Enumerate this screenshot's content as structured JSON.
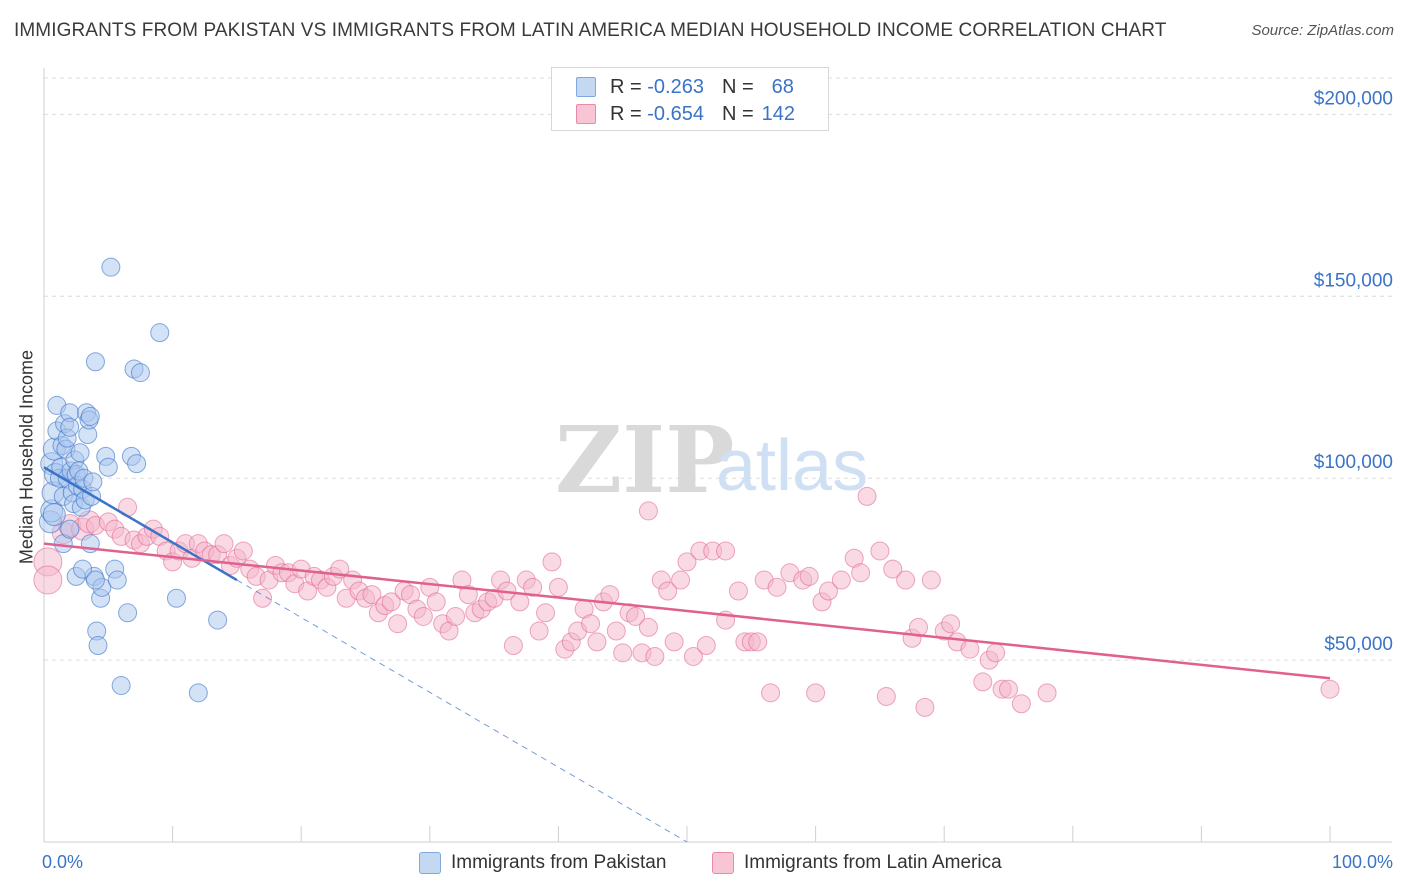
{
  "title": "IMMIGRANTS FROM PAKISTAN VS IMMIGRANTS FROM LATIN AMERICA MEDIAN HOUSEHOLD INCOME CORRELATION CHART",
  "source": "Source: ZipAtlas.com",
  "watermark": {
    "zip": "ZIP",
    "atlas": "atlas"
  },
  "legend": {
    "rows": [
      {
        "r_label": "R =",
        "r_value": "-0.263",
        "n_label": "N =",
        "n_value": "68",
        "color": "#7fa8e0",
        "fill": "#c5d8f2"
      },
      {
        "r_label": "R =",
        "r_value": "-0.654",
        "n_label": "N =",
        "n_value": "142",
        "color": "#e88aa8",
        "fill": "#f7c5d4"
      }
    ]
  },
  "colors": {
    "blue": "#3a73c8",
    "blue_fill": "#a9c6ee",
    "pink": "#e0608e",
    "pink_fill": "#f4b6c9",
    "grid": "#dcdcdc",
    "axis_text": "#3a73c8"
  },
  "chart_data": {
    "type": "scatter",
    "title": "IMMIGRANTS FROM PAKISTAN VS IMMIGRANTS FROM LATIN AMERICA MEDIAN HOUSEHOLD INCOME CORRELATION CHART",
    "xlabel": "",
    "ylabel": "Median Household Income",
    "xlim": [
      0,
      100
    ],
    "ylim": [
      0,
      210000
    ],
    "x_tick_labels": [
      "0.0%",
      "100.0%"
    ],
    "y_ticks": [
      50000,
      100000,
      150000,
      200000
    ],
    "y_tick_labels": [
      "$50,000",
      "$100,000",
      "$150,000",
      "$200,000"
    ],
    "grid": true,
    "legend_position": "top-center",
    "series": [
      {
        "name": "Immigrants from Pakistan",
        "trend": {
          "x_start": 0,
          "y_start": 103000,
          "x_end": 15,
          "y_end": 72000,
          "dashed_to_x": 50,
          "dashed_to_y": 0
        },
        "points": [
          [
            0.5,
            88000
          ],
          [
            0.6,
            91000
          ],
          [
            0.6,
            104000
          ],
          [
            0.7,
            96000
          ],
          [
            0.8,
            108000
          ],
          [
            0.9,
            101000
          ],
          [
            1.0,
            120000
          ],
          [
            1.0,
            113000
          ],
          [
            1.2,
            100000
          ],
          [
            1.3,
            103000
          ],
          [
            1.4,
            109000
          ],
          [
            1.5,
            95000
          ],
          [
            1.6,
            115000
          ],
          [
            1.7,
            108000
          ],
          [
            1.8,
            100000
          ],
          [
            1.8,
            111000
          ],
          [
            2.0,
            118000
          ],
          [
            2.0,
            114000
          ],
          [
            2.1,
            102000
          ],
          [
            2.2,
            96000
          ],
          [
            2.3,
            93000
          ],
          [
            2.4,
            105000
          ],
          [
            2.5,
            101000
          ],
          [
            2.6,
            98000
          ],
          [
            2.7,
            102000
          ],
          [
            2.8,
            107000
          ],
          [
            2.9,
            92000
          ],
          [
            3.0,
            97000
          ],
          [
            3.1,
            100000
          ],
          [
            3.2,
            94000
          ],
          [
            3.3,
            118000
          ],
          [
            3.4,
            112000
          ],
          [
            3.5,
            116000
          ],
          [
            3.6,
            117000
          ],
          [
            3.7,
            95000
          ],
          [
            3.8,
            99000
          ],
          [
            3.9,
            73000
          ],
          [
            4.0,
            132000
          ],
          [
            4.1,
            58000
          ],
          [
            4.2,
            54000
          ],
          [
            4.4,
            67000
          ],
          [
            4.5,
            70000
          ],
          [
            4.8,
            106000
          ],
          [
            5.0,
            103000
          ],
          [
            5.2,
            158000
          ],
          [
            5.5,
            75000
          ],
          [
            5.7,
            72000
          ],
          [
            6.0,
            43000
          ],
          [
            6.5,
            63000
          ],
          [
            6.8,
            106000
          ],
          [
            7.0,
            130000
          ],
          [
            7.2,
            104000
          ],
          [
            7.5,
            129000
          ],
          [
            9.0,
            140000
          ],
          [
            10.3,
            67000
          ],
          [
            12.0,
            41000
          ],
          [
            13.5,
            61000
          ],
          [
            2.5,
            73000
          ],
          [
            3.0,
            75000
          ],
          [
            4.0,
            72000
          ],
          [
            1.5,
            82000
          ],
          [
            2.0,
            86000
          ],
          [
            0.8,
            90000
          ],
          [
            3.6,
            82000
          ]
        ]
      },
      {
        "name": "Immigrants from Latin America",
        "trend": {
          "x_start": 0,
          "y_start": 82000,
          "x_end": 100,
          "y_end": 45000
        },
        "points": [
          [
            0.3,
            77000
          ],
          [
            0.3,
            72000
          ],
          [
            1.5,
            85000
          ],
          [
            2.0,
            87000
          ],
          [
            3.0,
            86000
          ],
          [
            3.5,
            88000
          ],
          [
            4.0,
            87000
          ],
          [
            5.0,
            88000
          ],
          [
            5.5,
            86000
          ],
          [
            6.0,
            84000
          ],
          [
            6.5,
            92000
          ],
          [
            7.0,
            83000
          ],
          [
            7.5,
            82000
          ],
          [
            8.0,
            84000
          ],
          [
            8.5,
            86000
          ],
          [
            9.0,
            84000
          ],
          [
            9.5,
            80000
          ],
          [
            10.0,
            77000
          ],
          [
            10.5,
            80000
          ],
          [
            11.0,
            82000
          ],
          [
            11.5,
            78000
          ],
          [
            12.0,
            82000
          ],
          [
            12.5,
            80000
          ],
          [
            13.0,
            79000
          ],
          [
            13.5,
            79000
          ],
          [
            14.0,
            82000
          ],
          [
            14.5,
            76000
          ],
          [
            15.0,
            78000
          ],
          [
            15.5,
            80000
          ],
          [
            16.0,
            75000
          ],
          [
            16.5,
            73000
          ],
          [
            17.0,
            67000
          ],
          [
            17.5,
            72000
          ],
          [
            18.0,
            76000
          ],
          [
            18.5,
            74000
          ],
          [
            19.0,
            74000
          ],
          [
            19.5,
            71000
          ],
          [
            20.0,
            75000
          ],
          [
            20.5,
            69000
          ],
          [
            21.0,
            73000
          ],
          [
            21.5,
            72000
          ],
          [
            22.0,
            70000
          ],
          [
            22.5,
            73000
          ],
          [
            23.0,
            75000
          ],
          [
            23.5,
            67000
          ],
          [
            24.0,
            72000
          ],
          [
            24.5,
            69000
          ],
          [
            25.0,
            67000
          ],
          [
            25.5,
            68000
          ],
          [
            26.0,
            63000
          ],
          [
            26.5,
            65000
          ],
          [
            27.0,
            66000
          ],
          [
            27.5,
            60000
          ],
          [
            28.0,
            69000
          ],
          [
            28.5,
            68000
          ],
          [
            29.0,
            64000
          ],
          [
            29.5,
            62000
          ],
          [
            30.0,
            70000
          ],
          [
            30.5,
            66000
          ],
          [
            31.0,
            60000
          ],
          [
            31.5,
            58000
          ],
          [
            32.0,
            62000
          ],
          [
            32.5,
            72000
          ],
          [
            33.0,
            68000
          ],
          [
            33.5,
            63000
          ],
          [
            34.0,
            64000
          ],
          [
            34.5,
            66000
          ],
          [
            35.0,
            67000
          ],
          [
            35.5,
            72000
          ],
          [
            36.0,
            69000
          ],
          [
            36.5,
            54000
          ],
          [
            37.0,
            66000
          ],
          [
            37.5,
            72000
          ],
          [
            38.0,
            70000
          ],
          [
            38.5,
            58000
          ],
          [
            39.0,
            63000
          ],
          [
            39.5,
            77000
          ],
          [
            40.0,
            70000
          ],
          [
            40.5,
            53000
          ],
          [
            41.0,
            55000
          ],
          [
            41.5,
            58000
          ],
          [
            42.0,
            64000
          ],
          [
            42.5,
            60000
          ],
          [
            43.0,
            55000
          ],
          [
            43.5,
            66000
          ],
          [
            44.0,
            68000
          ],
          [
            44.5,
            58000
          ],
          [
            45.0,
            52000
          ],
          [
            45.5,
            63000
          ],
          [
            46.0,
            62000
          ],
          [
            46.5,
            52000
          ],
          [
            47.0,
            59000
          ],
          [
            47.5,
            51000
          ],
          [
            47.0,
            91000
          ],
          [
            48.0,
            72000
          ],
          [
            48.5,
            69000
          ],
          [
            49.0,
            55000
          ],
          [
            49.5,
            72000
          ],
          [
            50.0,
            77000
          ],
          [
            50.5,
            51000
          ],
          [
            51.0,
            80000
          ],
          [
            51.5,
            54000
          ],
          [
            52.0,
            80000
          ],
          [
            53.0,
            80000
          ],
          [
            53.0,
            61000
          ],
          [
            54.0,
            69000
          ],
          [
            54.5,
            55000
          ],
          [
            55.0,
            55000
          ],
          [
            55.5,
            55000
          ],
          [
            56.0,
            72000
          ],
          [
            56.5,
            41000
          ],
          [
            57.0,
            70000
          ],
          [
            58.0,
            74000
          ],
          [
            59.0,
            72000
          ],
          [
            59.5,
            73000
          ],
          [
            60.0,
            41000
          ],
          [
            60.5,
            66000
          ],
          [
            61.0,
            69000
          ],
          [
            62.0,
            72000
          ],
          [
            63.0,
            78000
          ],
          [
            63.5,
            74000
          ],
          [
            64.0,
            95000
          ],
          [
            65.0,
            80000
          ],
          [
            65.5,
            40000
          ],
          [
            66.0,
            75000
          ],
          [
            67.0,
            72000
          ],
          [
            67.5,
            56000
          ],
          [
            68.0,
            59000
          ],
          [
            68.5,
            37000
          ],
          [
            69.0,
            72000
          ],
          [
            70.0,
            58000
          ],
          [
            70.5,
            60000
          ],
          [
            71.0,
            55000
          ],
          [
            72.0,
            53000
          ],
          [
            73.0,
            44000
          ],
          [
            73.5,
            50000
          ],
          [
            74.0,
            52000
          ],
          [
            74.5,
            42000
          ],
          [
            76.0,
            38000
          ],
          [
            78.0,
            41000
          ],
          [
            100.0,
            42000
          ],
          [
            75.0,
            42000
          ]
        ]
      }
    ]
  },
  "x_axis": {
    "left_label": "0.0%",
    "right_label": "100.0%"
  },
  "bottom_legend": [
    "Immigrants from Pakistan",
    "Immigrants from Latin America"
  ]
}
